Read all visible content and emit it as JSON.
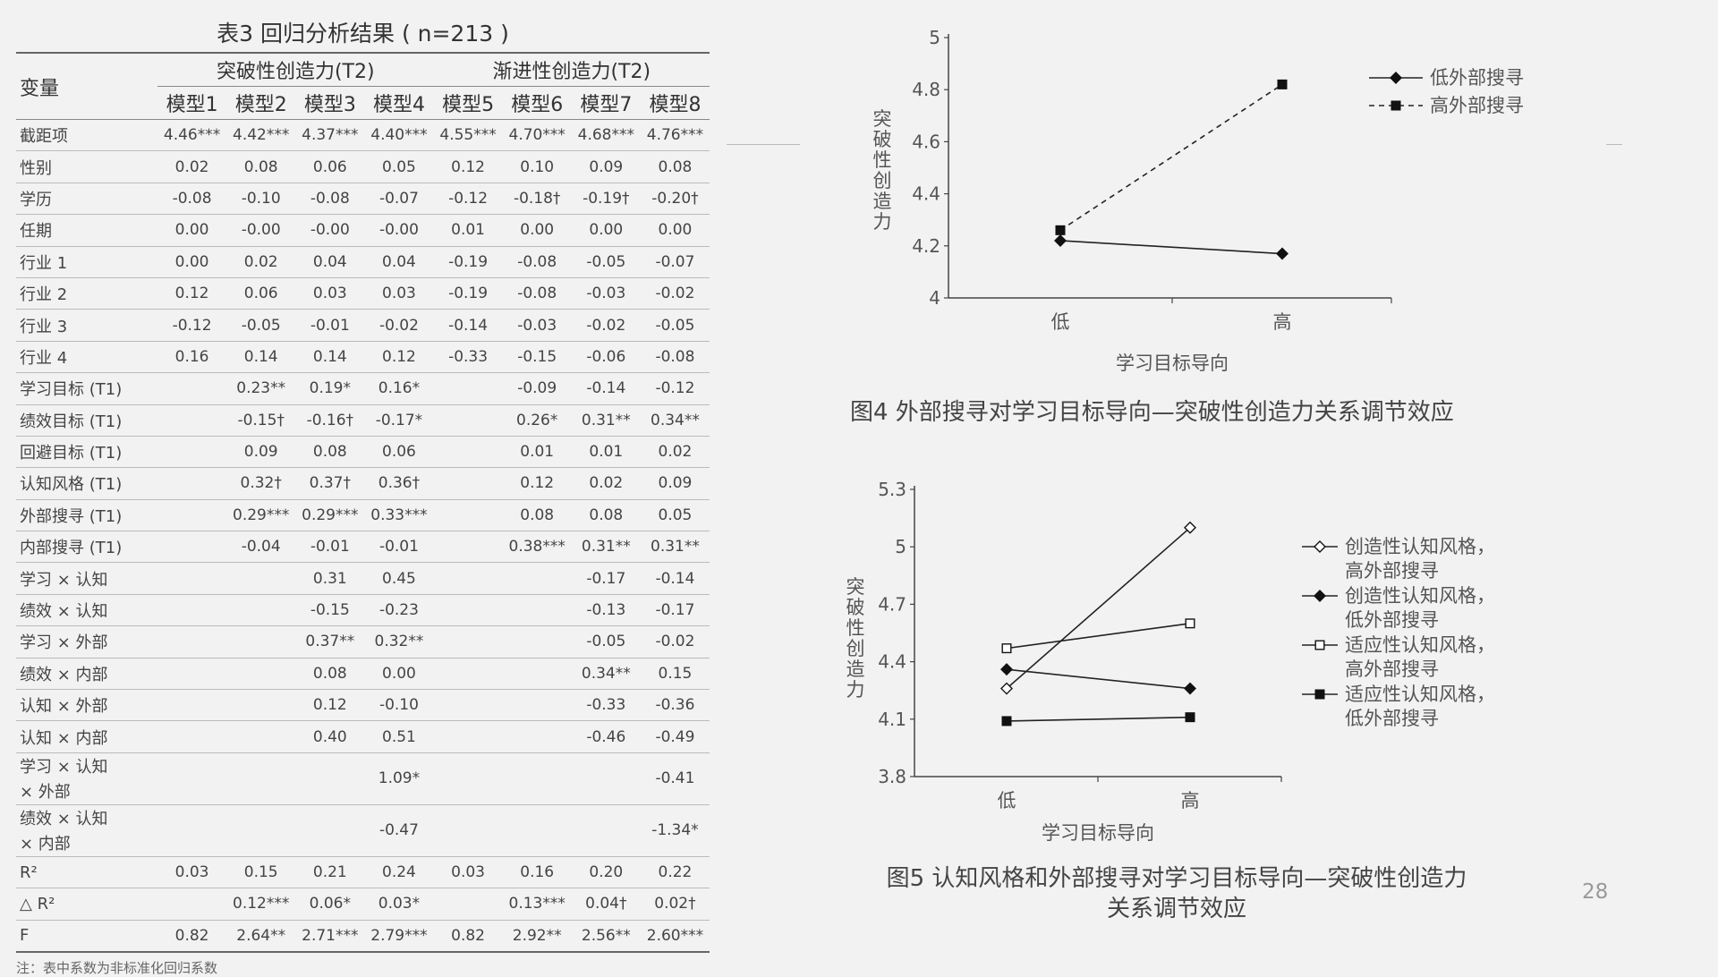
{
  "table": {
    "title": "表3  回归分析结果 ( n=213 )",
    "var_header": "变量",
    "group1": "突破性创造力(T2)",
    "group2": "渐进性创造力(T2)",
    "models": [
      "模型1",
      "模型2",
      "模型3",
      "模型4",
      "模型5",
      "模型6",
      "模型7",
      "模型8"
    ],
    "rows": [
      {
        "label": "截距项",
        "v": [
          "4.46***",
          "4.42***",
          "4.37***",
          "4.40***",
          "4.55***",
          "4.70***",
          "4.68***",
          "4.76***"
        ]
      },
      {
        "label": "性别",
        "v": [
          "0.02",
          "0.08",
          "0.06",
          "0.05",
          "0.12",
          "0.10",
          "0.09",
          "0.08"
        ]
      },
      {
        "label": "学历",
        "v": [
          "-0.08",
          "-0.10",
          "-0.08",
          "-0.07",
          "-0.12",
          "-0.18†",
          "-0.19†",
          "-0.20†"
        ]
      },
      {
        "label": "任期",
        "v": [
          "0.00",
          "-0.00",
          "-0.00",
          "-0.00",
          "0.01",
          "0.00",
          "0.00",
          "0.00"
        ]
      },
      {
        "label": "行业 1",
        "v": [
          "0.00",
          "0.02",
          "0.04",
          "0.04",
          "-0.19",
          "-0.08",
          "-0.05",
          "-0.07"
        ]
      },
      {
        "label": "行业 2",
        "v": [
          "0.12",
          "0.06",
          "0.03",
          "0.03",
          "-0.19",
          "-0.08",
          "-0.03",
          "-0.02"
        ]
      },
      {
        "label": "行业 3",
        "v": [
          "-0.12",
          "-0.05",
          "-0.01",
          "-0.02",
          "-0.14",
          "-0.03",
          "-0.02",
          "-0.05"
        ]
      },
      {
        "label": "行业 4",
        "v": [
          "0.16",
          "0.14",
          "0.14",
          "0.12",
          "-0.33",
          "-0.15",
          "-0.06",
          "-0.08"
        ]
      },
      {
        "label": "学习目标 (T1)",
        "v": [
          "",
          "0.23**",
          "0.19*",
          "0.16*",
          "",
          "-0.09",
          "-0.14",
          "-0.12"
        ]
      },
      {
        "label": "绩效目标 (T1)",
        "v": [
          "",
          "-0.15†",
          "-0.16†",
          "-0.17*",
          "",
          "0.26*",
          "0.31**",
          "0.34**"
        ]
      },
      {
        "label": "回避目标 (T1)",
        "v": [
          "",
          "0.09",
          "0.08",
          "0.06",
          "",
          "0.01",
          "0.01",
          "0.02"
        ]
      },
      {
        "label": "认知风格 (T1)",
        "v": [
          "",
          "0.32†",
          "0.37†",
          "0.36†",
          "",
          "0.12",
          "0.02",
          "0.09"
        ]
      },
      {
        "label": "外部搜寻 (T1)",
        "v": [
          "",
          "0.29***",
          "0.29***",
          "0.33***",
          "",
          "0.08",
          "0.08",
          "0.05"
        ]
      },
      {
        "label": "内部搜寻 (T1)",
        "v": [
          "",
          "-0.04",
          "-0.01",
          "-0.01",
          "",
          "0.38***",
          "0.31**",
          "0.31**"
        ]
      },
      {
        "label": "学习 × 认知",
        "v": [
          "",
          "",
          "0.31",
          "0.45",
          "",
          "",
          "-0.17",
          "-0.14"
        ]
      },
      {
        "label": "绩效 × 认知",
        "v": [
          "",
          "",
          "-0.15",
          "-0.23",
          "",
          "",
          "-0.13",
          "-0.17"
        ]
      },
      {
        "label": "学习 × 外部",
        "v": [
          "",
          "",
          "0.37**",
          "0.32**",
          "",
          "",
          "-0.05",
          "-0.02"
        ]
      },
      {
        "label": "绩效 × 内部",
        "v": [
          "",
          "",
          "0.08",
          "0.00",
          "",
          "",
          "0.34**",
          "0.15"
        ]
      },
      {
        "label": "认知 × 外部",
        "v": [
          "",
          "",
          "0.12",
          "-0.10",
          "",
          "",
          "-0.33",
          "-0.36"
        ]
      },
      {
        "label": "认知 × 内部",
        "v": [
          "",
          "",
          "0.40",
          "0.51",
          "",
          "",
          "-0.46",
          "-0.49"
        ]
      },
      {
        "label": "学习 × 认知",
        "label2": "× 外部",
        "v": [
          "",
          "",
          "",
          "1.09*",
          "",
          "",
          "",
          "-0.41"
        ]
      },
      {
        "label": "绩效 × 认知",
        "label2": "× 内部",
        "v": [
          "",
          "",
          "",
          "-0.47",
          "",
          "",
          "",
          "-1.34*"
        ]
      },
      {
        "label": "R²",
        "v": [
          "0.03",
          "0.15",
          "0.21",
          "0.24",
          "0.03",
          "0.16",
          "0.20",
          "0.22"
        ]
      },
      {
        "label": "△ R²",
        "v": [
          "",
          "0.12***",
          "0.06*",
          "0.03*",
          "",
          "0.13***",
          "0.04†",
          "0.02†"
        ]
      },
      {
        "label": "F",
        "v": [
          "0.82",
          "2.64**",
          "2.71***",
          "2.79***",
          "0.82",
          "2.92**",
          "2.56**",
          "2.60***"
        ]
      }
    ],
    "note": "注：表中系数为非标准化回归系数"
  },
  "figure4": {
    "caption": "图4  外部搜寻对学习目标导向—突破性创造力关系调节效应"
  },
  "figure5": {
    "caption_line1": "图5  认知风格和外部搜寻对学习目标导向—突破性创造力",
    "caption_line2": "关系调节效应"
  },
  "page_number": "28",
  "chart_data": [
    {
      "type": "line",
      "title": "",
      "xlabel": "学习目标导向",
      "ylabel": "突破性创造力",
      "categories": [
        "低",
        "高"
      ],
      "ylim": [
        4,
        5
      ],
      "yticks": [
        "4",
        "4.2",
        "4.4",
        "4.6",
        "4.8",
        "5"
      ],
      "legend_position": "top-right",
      "series": [
        {
          "name": "低外部搜寻",
          "values": [
            4.22,
            4.17
          ],
          "marker": "diamond",
          "style": "solid"
        },
        {
          "name": "高外部搜寻",
          "values": [
            4.26,
            4.82
          ],
          "marker": "square",
          "style": "dashed"
        }
      ]
    },
    {
      "type": "line",
      "title": "",
      "xlabel": "学习目标导向",
      "ylabel": "突破性创造力",
      "categories": [
        "低",
        "高"
      ],
      "ylim": [
        3.8,
        5.3
      ],
      "yticks": [
        "3.8",
        "4.1",
        "4.4",
        "4.7",
        "5",
        "5.3"
      ],
      "legend_position": "right",
      "series": [
        {
          "name": "创造性认知风格，",
          "name2": "高外部搜寻",
          "values": [
            4.26,
            5.1
          ],
          "marker": "diamond-open"
        },
        {
          "name": "创造性认知风格，",
          "name2": "低外部搜寻",
          "values": [
            4.36,
            4.26
          ],
          "marker": "diamond"
        },
        {
          "name": "适应性认知风格，",
          "name2": "高外部搜寻",
          "values": [
            4.47,
            4.6
          ],
          "marker": "square-open"
        },
        {
          "name": "适应性认知风格，",
          "name2": "低外部搜寻",
          "values": [
            4.09,
            4.11
          ],
          "marker": "square"
        }
      ]
    }
  ]
}
